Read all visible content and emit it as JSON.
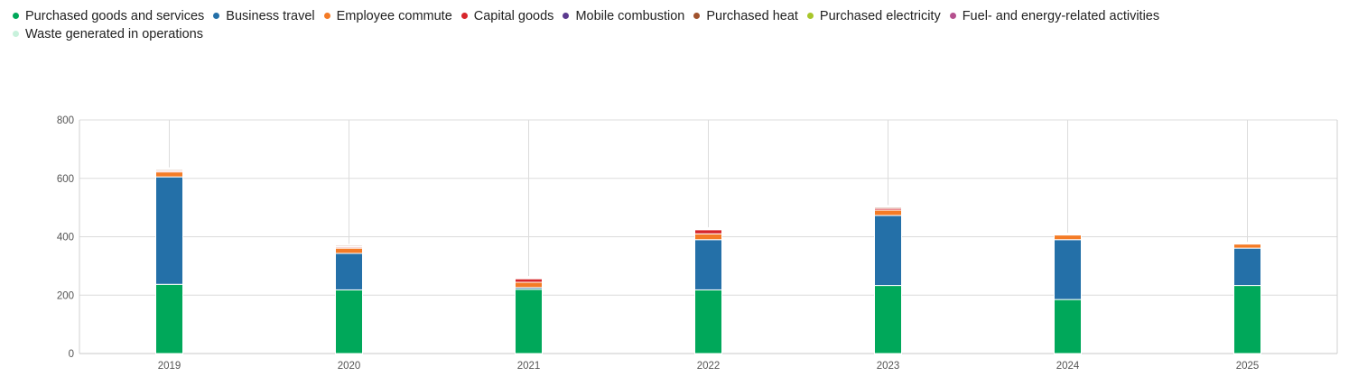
{
  "chart_data": {
    "type": "bar",
    "stacked": true,
    "categories": [
      "2019",
      "2020",
      "2021",
      "2022",
      "2023",
      "2024",
      "2025"
    ],
    "ylim": [
      0,
      800
    ],
    "yticks": [
      0,
      200,
      400,
      600,
      800
    ],
    "grid": true,
    "legend_position": "top-left",
    "series": [
      {
        "name": "Purchased goods and services",
        "color": "#00a85a",
        "values": [
          237,
          218,
          220,
          218,
          233,
          185,
          233
        ]
      },
      {
        "name": "Business travel",
        "color": "#2470a8",
        "values": [
          368,
          125,
          6,
          172,
          240,
          205,
          128
        ]
      },
      {
        "name": "Employee commute",
        "color": "#f47b26",
        "values": [
          17,
          18,
          18,
          20,
          18,
          16,
          14
        ]
      },
      {
        "name": "Capital goods",
        "color": "#d7262b",
        "values": [
          4,
          4,
          12,
          14,
          6,
          1,
          1
        ]
      },
      {
        "name": "Mobile combustion",
        "color": "#5b3a8e",
        "values": [
          1,
          1,
          1,
          1,
          1,
          0,
          0
        ]
      },
      {
        "name": "Purchased heat",
        "color": "#a0522d",
        "values": [
          4,
          4,
          3,
          3,
          4,
          2,
          2
        ]
      },
      {
        "name": "Purchased electricity",
        "color": "#a8c62a",
        "values": [
          1,
          1,
          1,
          1,
          1,
          1,
          1
        ]
      },
      {
        "name": "Fuel- and energy-related activities",
        "color": "#b5508e",
        "values": [
          2,
          1,
          1,
          1,
          2,
          1,
          1
        ]
      },
      {
        "name": "Waste generated in operations",
        "color": "#c8f1dc",
        "values": [
          2,
          2,
          2,
          1,
          2,
          1,
          1
        ]
      }
    ]
  }
}
